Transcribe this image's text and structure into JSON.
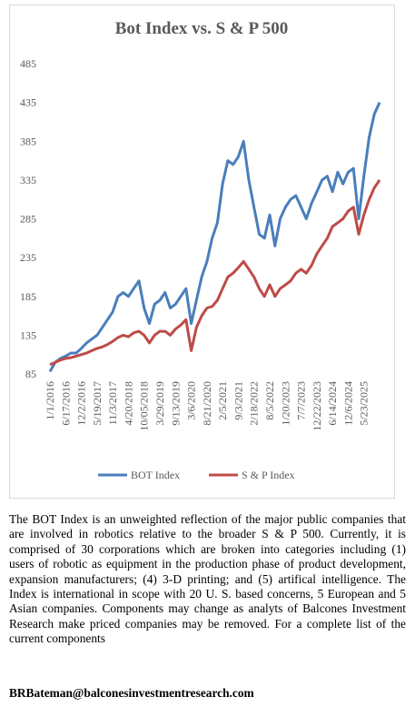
{
  "chart_data": {
    "type": "line",
    "title": "Bot Index vs. S & P 500",
    "categories": [
      "1/1/2016",
      null,
      null,
      "6/17/2016",
      null,
      null,
      "12/2/2016",
      null,
      null,
      "5/19/2017",
      null,
      null,
      "11/3/2017",
      null,
      null,
      "4/20/2018",
      null,
      null,
      "10/05/2018",
      null,
      null,
      "3/29/2019",
      null,
      null,
      "9/13/2019",
      null,
      null,
      "3/6/2020",
      null,
      null,
      "8/21/2020",
      null,
      null,
      "2/5/2021",
      null,
      null,
      "9/3/2021",
      null,
      null,
      "2/18/2022",
      null,
      null,
      "8/5/2022",
      null,
      null,
      "1/20/2023",
      null,
      null,
      "7/7/2023",
      null,
      null,
      "12/22/2023",
      null,
      null,
      "6/14/2024",
      null,
      null,
      "12/6/2024",
      null,
      null,
      "5/23/2025",
      null,
      null,
      null
    ],
    "series": [
      {
        "name": "BOT Index",
        "color": "#4a7ebb",
        "values": [
          88,
          100,
          105,
          108,
          112,
          112,
          118,
          125,
          130,
          135,
          145,
          155,
          165,
          185,
          190,
          185,
          195,
          205,
          170,
          150,
          175,
          180,
          190,
          170,
          175,
          185,
          195,
          150,
          180,
          210,
          230,
          260,
          280,
          330,
          360,
          355,
          365,
          385,
          335,
          300,
          265,
          260,
          290,
          250,
          285,
          300,
          310,
          315,
          300,
          285,
          305,
          320,
          335,
          340,
          320,
          345,
          330,
          345,
          350,
          285,
          340,
          390,
          420,
          435
        ]
      },
      {
        "name": "S & P Index",
        "color": "#be4b48",
        "values": [
          97,
          100,
          103,
          105,
          106,
          108,
          110,
          112,
          115,
          118,
          120,
          123,
          127,
          132,
          135,
          133,
          138,
          140,
          135,
          125,
          135,
          140,
          140,
          135,
          143,
          148,
          155,
          115,
          145,
          160,
          170,
          172,
          180,
          195,
          210,
          215,
          222,
          230,
          220,
          210,
          195,
          185,
          200,
          185,
          195,
          200,
          205,
          215,
          220,
          215,
          225,
          240,
          250,
          260,
          275,
          280,
          285,
          295,
          300,
          265,
          290,
          310,
          325,
          335
        ]
      }
    ],
    "ylim": [
      85,
      485
    ],
    "yticks": [
      85,
      135,
      185,
      235,
      285,
      335,
      385,
      435,
      485
    ],
    "legend": "bottom"
  },
  "description": "The BOT Index is an unweighted reflection of the major public companies that are involved in robotics relative to the broader S & P 500. Currently, it is comprised of 30 corporations which are broken into categories including (1) users of robotic as equipment in the production phase of product development, expansion manufacturers; (4) 3-D printing; and (5) artifical intelligence. The Index is international in scope with 20 U. S. based concerns, 5 European and 5 Asian companies. Components may change as analyts of Balcones Investment Research make priced companies may be removed. For a complete list of the current components",
  "email": "BRBateman@balconesinvestmentresearch.com"
}
